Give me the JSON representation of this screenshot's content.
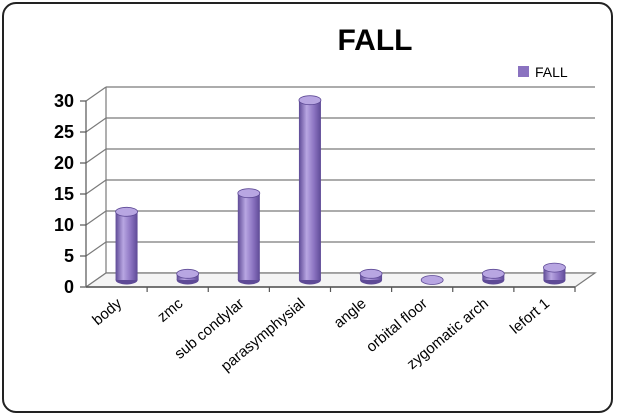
{
  "chart_data": {
    "type": "bar",
    "title": "FALL",
    "categories": [
      "body",
      "zmc",
      "sub condylar",
      "parasymphysial",
      "angle",
      "orbital floor",
      "zygomatic arch",
      "lefort 1"
    ],
    "series": [
      {
        "name": "FALL",
        "values": [
          11,
          1,
          14,
          29,
          1,
          0,
          1,
          2
        ]
      }
    ],
    "yticks": [
      "0",
      "5",
      "10",
      "15",
      "20",
      "25",
      "30"
    ],
    "ylim": [
      0,
      30
    ],
    "xlabel": "",
    "ylabel": "",
    "legend": "top-right",
    "grid": true,
    "colors": {
      "bar": "#8a72c0",
      "bar_light": "#b8a6e2",
      "bar_dark": "#5e4a96",
      "grid": "#7a7a7a"
    }
  }
}
